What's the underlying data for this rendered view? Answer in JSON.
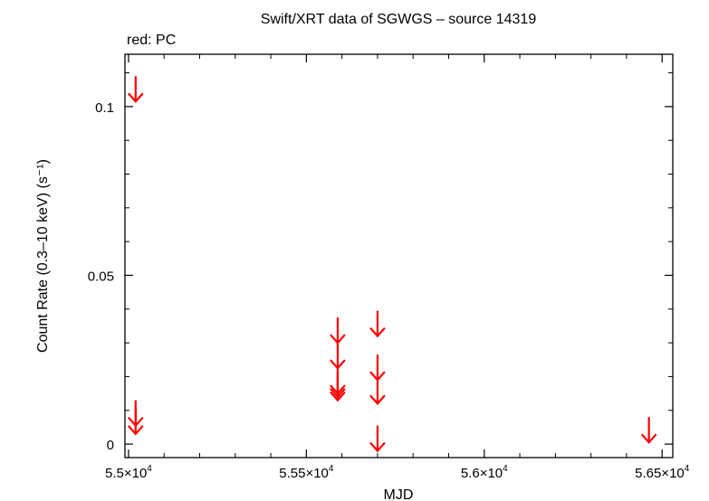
{
  "chart_data": {
    "type": "scatter",
    "title": "Swift/XRT data of SGWGS – source 14319",
    "subtitle": "red: PC",
    "xlabel": "MJD",
    "ylabel": "Count Rate (0.3–10 keV) (s⁻¹)",
    "xlim": [
      54990,
      56530
    ],
    "ylim": [
      -0.004,
      0.1155
    ],
    "x_ticks": [
      {
        "value": 55000,
        "mantissa": "5.5×10",
        "exp": "4"
      },
      {
        "value": 55500,
        "mantissa": "5.55×10",
        "exp": "4"
      },
      {
        "value": 56000,
        "mantissa": "5.6×10",
        "exp": "4"
      },
      {
        "value": 56500,
        "mantissa": "5.65×10",
        "exp": "4"
      }
    ],
    "y_ticks": [
      {
        "value": 0,
        "label": "0"
      },
      {
        "value": 0.05,
        "label": "0.05"
      },
      {
        "value": 0.1,
        "label": "0.1"
      }
    ],
    "series": [
      {
        "name": "PC",
        "color": "#ff0000",
        "marker": "upper-limit-arrow",
        "points": [
          {
            "x": 55020,
            "y": 0.1015
          },
          {
            "x": 55020,
            "y": 0.0055
          },
          {
            "x": 55020,
            "y": 0.003
          },
          {
            "x": 55588,
            "y": 0.03
          },
          {
            "x": 55588,
            "y": 0.0225
          },
          {
            "x": 55588,
            "y": 0.015
          },
          {
            "x": 55588,
            "y": 0.014
          },
          {
            "x": 55588,
            "y": 0.013
          },
          {
            "x": 55700,
            "y": 0.032
          },
          {
            "x": 55700,
            "y": 0.019
          },
          {
            "x": 55700,
            "y": 0.012
          },
          {
            "x": 55700,
            "y": -0.002
          },
          {
            "x": 56463,
            "y": 0.0005
          }
        ]
      }
    ],
    "grid": false,
    "legend": "none"
  }
}
